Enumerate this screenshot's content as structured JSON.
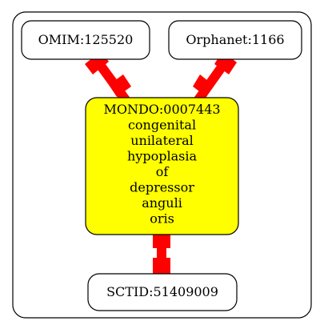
{
  "graph": {
    "nodes": {
      "omim": {
        "label": "OMIM:125520"
      },
      "orphanet": {
        "label": "Orphanet:1166"
      },
      "mondo": {
        "label_lines": [
          "MONDO:0007443",
          "congenital",
          "unilateral",
          "hypoplasia",
          "of",
          "depressor",
          "anguli",
          "oris"
        ],
        "fill_color": "#ffff00"
      },
      "sctid": {
        "label": "SCTID:51409009"
      }
    },
    "edges": [
      {
        "from": "omim",
        "to": "mondo"
      },
      {
        "from": "orphanet",
        "to": "mondo"
      },
      {
        "from": "mondo",
        "to": "sctid"
      }
    ],
    "edge_color": "#ff0000",
    "border_color": "#000000"
  }
}
